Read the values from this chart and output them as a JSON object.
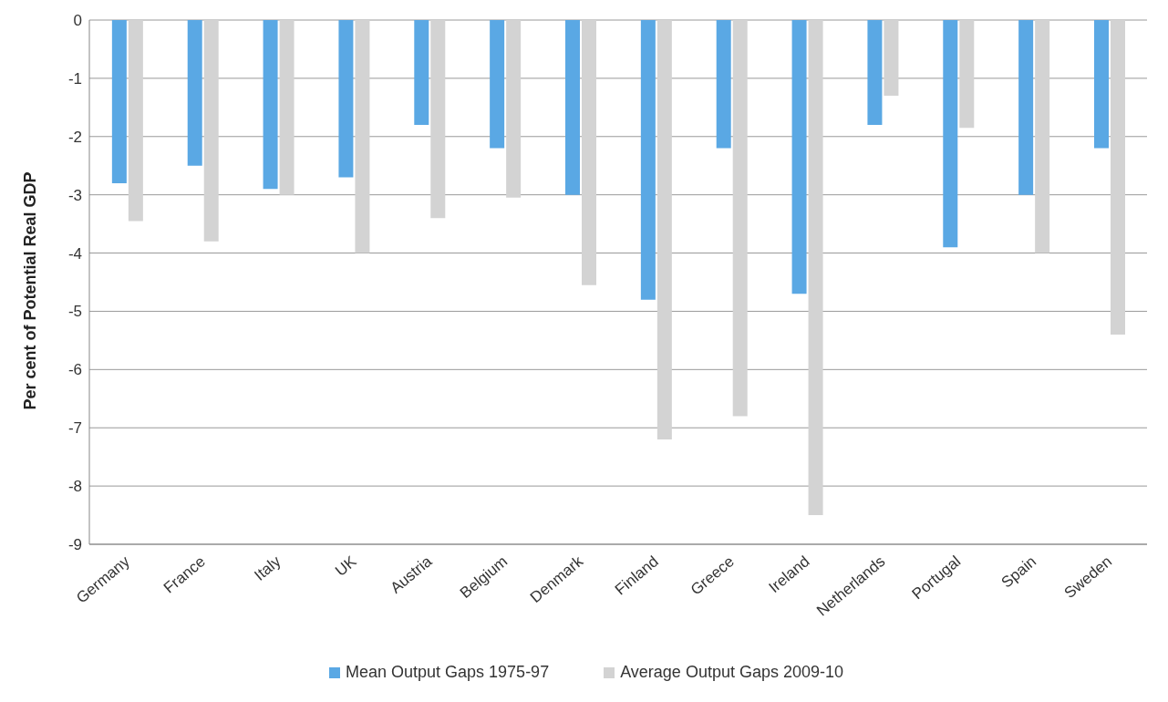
{
  "chart_data": {
    "type": "bar",
    "ylabel": "Per cent of Potential Real GDP",
    "categories": [
      "Germany",
      "France",
      "Italy",
      "UK",
      "Austria",
      "Belgium",
      "Denmark",
      "Finland",
      "Greece",
      "Ireland",
      "Netherlands",
      "Portugal",
      "Spain",
      "Sweden"
    ],
    "series": [
      {
        "name": "Mean Output Gaps 1975-97",
        "color": "#5aa8e4",
        "values": [
          -2.8,
          -2.5,
          -2.9,
          -2.7,
          -1.8,
          -2.2,
          -3.0,
          -4.8,
          -2.2,
          -4.7,
          -1.8,
          -3.9,
          -3.0,
          -2.2
        ]
      },
      {
        "name": "Average Output Gaps 2009-10",
        "color": "#d3d3d3",
        "values": [
          -3.45,
          -3.8,
          -3.0,
          -4.0,
          -3.4,
          -3.05,
          -4.55,
          -7.2,
          -6.8,
          -8.5,
          -1.3,
          -1.85,
          -4.0,
          -5.4
        ]
      }
    ],
    "ylim": [
      -9,
      0
    ],
    "yticks": [
      -9,
      -8,
      -7,
      -6,
      -5,
      -4,
      -3,
      -2,
      -1,
      0
    ],
    "grid": "y",
    "legend": "bottom"
  }
}
